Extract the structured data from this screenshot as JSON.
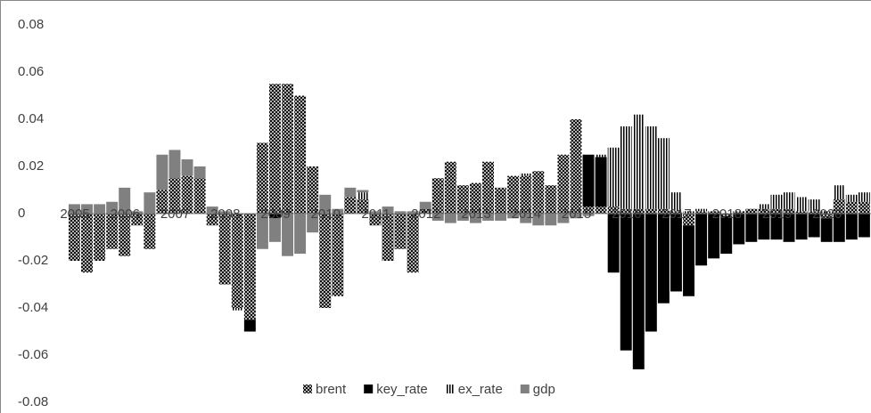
{
  "chart_data": {
    "type": "stacked_bar",
    "categories": [
      "2005",
      null,
      null,
      null,
      "2006",
      null,
      null,
      null,
      "2007",
      null,
      null,
      null,
      "2008",
      null,
      null,
      null,
      "2009",
      null,
      null,
      null,
      "2010",
      null,
      null,
      null,
      "2011",
      null,
      null,
      null,
      "2012",
      null,
      null,
      null,
      "2013",
      null,
      null,
      null,
      "2014",
      null,
      null,
      null,
      "2015",
      null,
      null,
      null,
      "2016",
      null,
      null,
      null,
      "2017",
      null,
      null,
      null,
      "2018",
      null,
      null,
      null,
      "2019",
      null,
      null,
      null,
      "2020",
      null,
      null,
      null
    ],
    "series": [
      {
        "name": "brent",
        "color": "#000000",
        "pattern": "cross",
        "values": [
          -0.02,
          -0.025,
          -0.02,
          -0.015,
          -0.018,
          -0.005,
          -0.015,
          0.01,
          0.015,
          0.016,
          0.015,
          -0.005,
          -0.03,
          -0.04,
          -0.045,
          0.03,
          0.055,
          0.055,
          0.05,
          0.02,
          -0.04,
          -0.035,
          0.007,
          0.006,
          -0.005,
          -0.02,
          -0.015,
          -0.025,
          0.002,
          0.015,
          0.022,
          0.012,
          0.013,
          0.022,
          0.011,
          0.016,
          0.016,
          0.018,
          0.012,
          0.025,
          0.04,
          0.003,
          0.003,
          0.003,
          0.002,
          0.002,
          0.002,
          0.002,
          0.001,
          -0.005,
          0.001,
          0.001,
          -0.001,
          0.001,
          0.002,
          0.002,
          0.002,
          0.002,
          0.001,
          0.001,
          -0.002,
          0.006,
          0.005,
          0.005
        ]
      },
      {
        "name": "key_rate",
        "color": "#000000",
        "pattern": "solid",
        "values": [
          0,
          0,
          0,
          0,
          0,
          0,
          0,
          0,
          0,
          0,
          0,
          0,
          0,
          0,
          -0.005,
          0,
          -0.002,
          0,
          0,
          0,
          0,
          0,
          0,
          0,
          0,
          0,
          0,
          0,
          0,
          0,
          0,
          0,
          0,
          0,
          0,
          0,
          0,
          0,
          0,
          0,
          0,
          0.022,
          0.021,
          -0.025,
          -0.058,
          -0.066,
          -0.05,
          -0.038,
          -0.033,
          -0.03,
          -0.022,
          -0.019,
          -0.016,
          -0.013,
          -0.012,
          -0.011,
          -0.011,
          -0.012,
          -0.011,
          -0.01,
          -0.01,
          -0.012,
          -0.011,
          -0.01
        ]
      },
      {
        "name": "ex_rate",
        "color": "#000000",
        "pattern": "vertical",
        "values": [
          0,
          0,
          0,
          0,
          0,
          0,
          0,
          0,
          0,
          0,
          0,
          0,
          0,
          -0.001,
          0,
          0,
          0,
          0,
          0,
          0,
          0,
          0,
          0,
          0.003,
          0,
          0,
          0,
          0,
          0,
          0,
          0,
          0,
          0,
          0,
          0,
          0,
          0.001,
          0,
          0,
          0,
          0,
          0,
          0.001,
          0.025,
          0.035,
          0.04,
          0.035,
          0.03,
          0.008,
          0.001,
          0.001,
          0,
          0,
          0,
          0,
          0.002,
          0.006,
          0.007,
          0.006,
          0.005,
          0.001,
          0.006,
          0.003,
          0.004
        ]
      },
      {
        "name": "gdp",
        "color": "#808080",
        "pattern": "solid",
        "values": [
          0.004,
          0.004,
          0.004,
          0.005,
          0.011,
          0.001,
          0.009,
          0.015,
          0.012,
          0.007,
          0.005,
          0.003,
          0.001,
          0,
          0,
          -0.015,
          -0.01,
          -0.018,
          -0.017,
          -0.008,
          0.008,
          0.002,
          0.004,
          0.001,
          0.001,
          0.003,
          0.001,
          0.001,
          0.003,
          -0.003,
          -0.004,
          -0.003,
          -0.004,
          -0.003,
          -0.003,
          -0.002,
          -0.004,
          -0.005,
          -0.005,
          -0.004,
          -0.002,
          -0.001,
          0,
          0,
          0,
          0,
          0,
          0,
          0,
          0,
          0,
          0,
          0,
          0,
          0,
          0,
          0,
          0,
          0,
          0,
          0,
          0,
          0,
          0
        ]
      }
    ],
    "ylim": [
      -0.08,
      0.08
    ],
    "yticks": [
      -0.08,
      -0.06,
      -0.04,
      -0.02,
      0,
      0.02,
      0.04,
      0.06,
      0.08
    ],
    "grid": false,
    "legend": "bottom"
  }
}
